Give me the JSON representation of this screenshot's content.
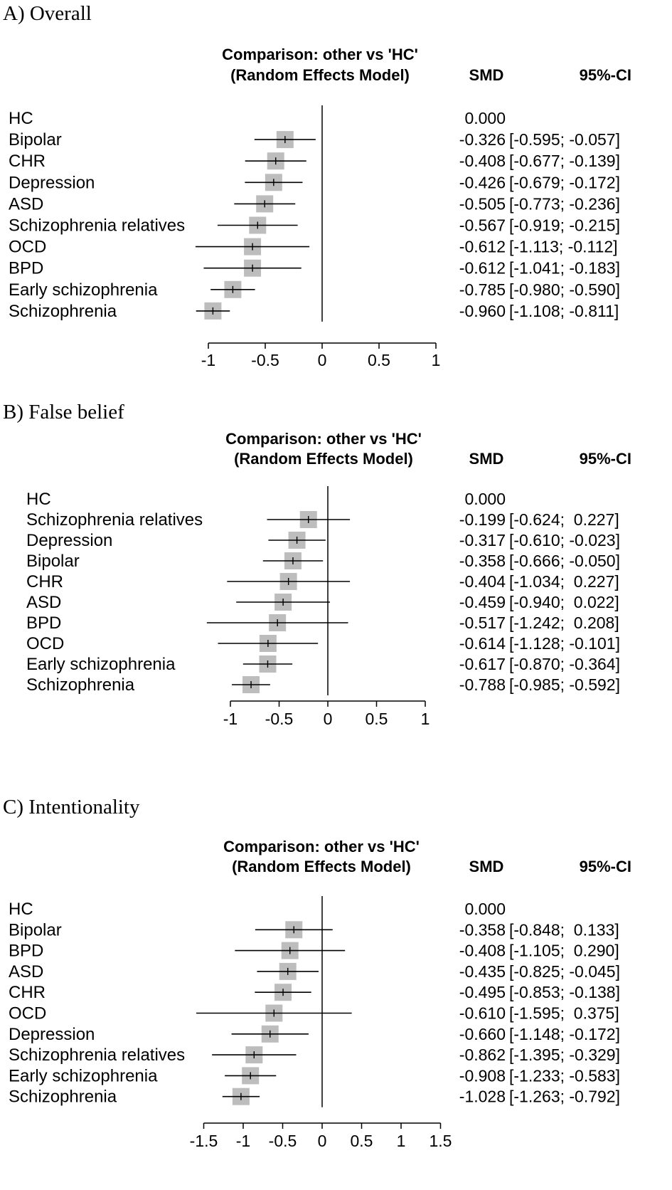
{
  "chart_data": [
    {
      "type": "forest",
      "panel_title": "A) Overall",
      "header": {
        "line1": "Comparison: other vs 'HC'",
        "line2": "(Random Effects Model)",
        "smd": "SMD",
        "ci": "95%-CI"
      },
      "xlim": [
        -1,
        1
      ],
      "ticks": [
        -1,
        -0.5,
        0,
        0.5,
        1
      ],
      "tick_labels": [
        "-1",
        "-0.5",
        "0",
        "0.5",
        "1"
      ],
      "rows": [
        {
          "label": "HC",
          "smd": 0.0,
          "lo": null,
          "hi": null,
          "smd_text": "0.000",
          "ci_text": ""
        },
        {
          "label": "Bipolar",
          "smd": -0.326,
          "lo": -0.595,
          "hi": -0.057,
          "smd_text": "-0.326",
          "ci_text": "[-0.595; -0.057]"
        },
        {
          "label": "CHR",
          "smd": -0.408,
          "lo": -0.677,
          "hi": -0.139,
          "smd_text": "-0.408",
          "ci_text": "[-0.677; -0.139]"
        },
        {
          "label": "Depression",
          "smd": -0.426,
          "lo": -0.679,
          "hi": -0.172,
          "smd_text": "-0.426",
          "ci_text": "[-0.679; -0.172]"
        },
        {
          "label": "ASD",
          "smd": -0.505,
          "lo": -0.773,
          "hi": -0.236,
          "smd_text": "-0.505",
          "ci_text": "[-0.773; -0.236]"
        },
        {
          "label": "Schizophrenia relatives",
          "smd": -0.567,
          "lo": -0.919,
          "hi": -0.215,
          "smd_text": "-0.567",
          "ci_text": "[-0.919; -0.215]"
        },
        {
          "label": "OCD",
          "smd": -0.612,
          "lo": -1.113,
          "hi": -0.112,
          "smd_text": "-0.612",
          "ci_text": "[-1.113; -0.112]"
        },
        {
          "label": "BPD",
          "smd": -0.612,
          "lo": -1.041,
          "hi": -0.183,
          "smd_text": "-0.612",
          "ci_text": "[-1.041; -0.183]"
        },
        {
          "label": "Early schizophrenia",
          "smd": -0.785,
          "lo": -0.98,
          "hi": -0.59,
          "smd_text": "-0.785",
          "ci_text": "[-0.980; -0.590]"
        },
        {
          "label": "Schizophrenia",
          "smd": -0.96,
          "lo": -1.108,
          "hi": -0.811,
          "smd_text": "-0.960",
          "ci_text": "[-1.108; -0.811]"
        }
      ]
    },
    {
      "type": "forest",
      "panel_title": "B) False belief",
      "header": {
        "line1": "Comparison: other vs 'HC'",
        "line2": "(Random Effects Model)",
        "smd": "SMD",
        "ci": "95%-CI"
      },
      "xlim": [
        -1,
        1
      ],
      "ticks": [
        -1,
        -0.5,
        0,
        0.5,
        1
      ],
      "tick_labels": [
        "-1",
        "-0.5",
        "0",
        "0.5",
        "1"
      ],
      "rows": [
        {
          "label": "HC",
          "smd": 0.0,
          "lo": null,
          "hi": null,
          "smd_text": "0.000",
          "ci_text": ""
        },
        {
          "label": "Schizophrenia relatives",
          "smd": -0.199,
          "lo": -0.624,
          "hi": 0.227,
          "smd_text": "-0.199",
          "ci_text": "[-0.624;  0.227]"
        },
        {
          "label": "Depression",
          "smd": -0.317,
          "lo": -0.61,
          "hi": -0.023,
          "smd_text": "-0.317",
          "ci_text": "[-0.610; -0.023]"
        },
        {
          "label": "Bipolar",
          "smd": -0.358,
          "lo": -0.666,
          "hi": -0.05,
          "smd_text": "-0.358",
          "ci_text": "[-0.666; -0.050]"
        },
        {
          "label": "CHR",
          "smd": -0.404,
          "lo": -1.034,
          "hi": 0.227,
          "smd_text": "-0.404",
          "ci_text": "[-1.034;  0.227]"
        },
        {
          "label": "ASD",
          "smd": -0.459,
          "lo": -0.94,
          "hi": 0.022,
          "smd_text": "-0.459",
          "ci_text": "[-0.940;  0.022]"
        },
        {
          "label": "BPD",
          "smd": -0.517,
          "lo": -1.242,
          "hi": 0.208,
          "smd_text": "-0.517",
          "ci_text": "[-1.242;  0.208]"
        },
        {
          "label": "OCD",
          "smd": -0.614,
          "lo": -1.128,
          "hi": -0.101,
          "smd_text": "-0.614",
          "ci_text": "[-1.128; -0.101]"
        },
        {
          "label": "Early schizophrenia",
          "smd": -0.617,
          "lo": -0.87,
          "hi": -0.364,
          "smd_text": "-0.617",
          "ci_text": "[-0.870; -0.364]"
        },
        {
          "label": "Schizophrenia",
          "smd": -0.788,
          "lo": -0.985,
          "hi": -0.592,
          "smd_text": "-0.788",
          "ci_text": "[-0.985; -0.592]"
        }
      ]
    },
    {
      "type": "forest",
      "panel_title": "C) Intentionality",
      "header": {
        "line1": "Comparison: other vs 'HC'",
        "line2": "(Random Effects Model)",
        "smd": "SMD",
        "ci": "95%-CI"
      },
      "xlim": [
        -1.5,
        1.5
      ],
      "ticks": [
        -1.5,
        -1,
        -0.5,
        0,
        0.5,
        1,
        1.5
      ],
      "tick_labels": [
        "-1.5",
        "-1",
        "-0.5",
        "0",
        "0.5",
        "1",
        "1.5"
      ],
      "rows": [
        {
          "label": "HC",
          "smd": 0.0,
          "lo": null,
          "hi": null,
          "smd_text": "0.000",
          "ci_text": ""
        },
        {
          "label": "Bipolar",
          "smd": -0.358,
          "lo": -0.848,
          "hi": 0.133,
          "smd_text": "-0.358",
          "ci_text": "[-0.848;  0.133]"
        },
        {
          "label": "BPD",
          "smd": -0.408,
          "lo": -1.105,
          "hi": 0.29,
          "smd_text": "-0.408",
          "ci_text": "[-1.105;  0.290]"
        },
        {
          "label": "ASD",
          "smd": -0.435,
          "lo": -0.825,
          "hi": -0.045,
          "smd_text": "-0.435",
          "ci_text": "[-0.825; -0.045]"
        },
        {
          "label": "CHR",
          "smd": -0.495,
          "lo": -0.853,
          "hi": -0.138,
          "smd_text": "-0.495",
          "ci_text": "[-0.853; -0.138]"
        },
        {
          "label": "OCD",
          "smd": -0.61,
          "lo": -1.595,
          "hi": 0.375,
          "smd_text": "-0.610",
          "ci_text": "[-1.595;  0.375]"
        },
        {
          "label": "Depression",
          "smd": -0.66,
          "lo": -1.148,
          "hi": -0.172,
          "smd_text": "-0.660",
          "ci_text": "[-1.148; -0.172]"
        },
        {
          "label": "Schizophrenia relatives",
          "smd": -0.862,
          "lo": -1.395,
          "hi": -0.329,
          "smd_text": "-0.862",
          "ci_text": "[-1.395; -0.329]"
        },
        {
          "label": "Early schizophrenia",
          "smd": -0.908,
          "lo": -1.233,
          "hi": -0.583,
          "smd_text": "-0.908",
          "ci_text": "[-1.233; -0.583]"
        },
        {
          "label": "Schizophrenia",
          "smd": -1.028,
          "lo": -1.263,
          "hi": -0.792,
          "smd_text": "-1.028",
          "ci_text": "[-1.263; -0.792]"
        }
      ]
    }
  ]
}
